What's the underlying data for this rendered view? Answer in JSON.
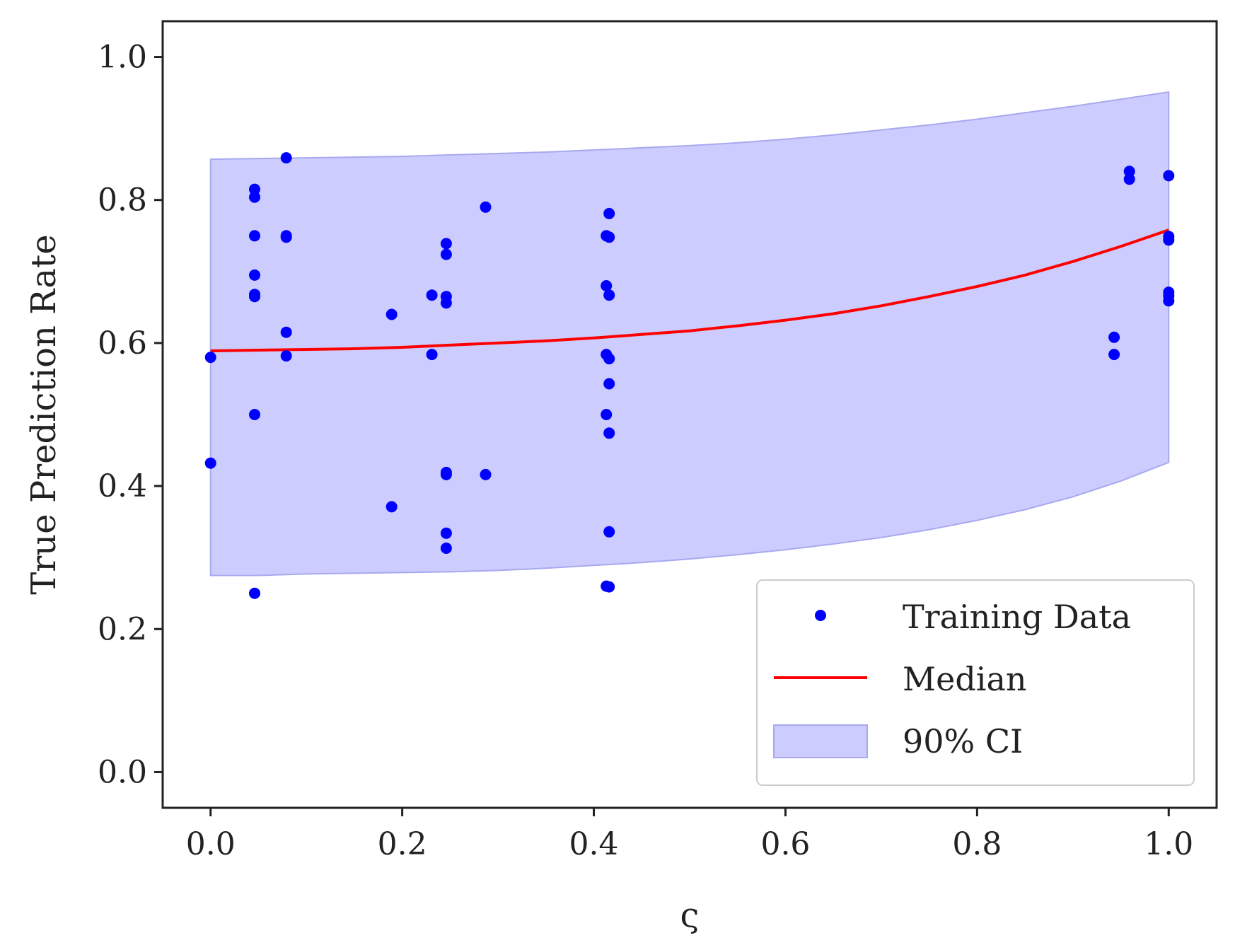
{
  "chart_data": {
    "type": "scatter",
    "title": "",
    "xlabel": "ς",
    "ylabel": "True Prediction Rate",
    "xlim": [
      -0.05,
      1.05
    ],
    "ylim": [
      -0.05,
      1.05
    ],
    "x_ticks": [
      0.0,
      0.2,
      0.4,
      0.6,
      0.8,
      1.0
    ],
    "x_tick_labels": [
      "0.0",
      "0.2",
      "0.4",
      "0.6",
      "0.8",
      "1.0"
    ],
    "y_ticks": [
      0.0,
      0.2,
      0.4,
      0.6,
      0.8,
      1.0
    ],
    "y_tick_labels": [
      "0.0",
      "0.2",
      "0.4",
      "0.6",
      "0.8",
      "1.0"
    ],
    "grid": false,
    "legend_position": "lower-right",
    "colors": {
      "points": "#0000ff",
      "median": "#ff0000",
      "band_fill": "#ccccff",
      "band_edge": "#a8a8f0",
      "axes": "#222222",
      "legend_border": "#cccccc"
    },
    "series": [
      {
        "name": "Training Data",
        "kind": "points",
        "points": [
          [
            0.0,
            0.58
          ],
          [
            0.0,
            0.432
          ],
          [
            0.046,
            0.815
          ],
          [
            0.046,
            0.804
          ],
          [
            0.046,
            0.75
          ],
          [
            0.046,
            0.695
          ],
          [
            0.046,
            0.668
          ],
          [
            0.046,
            0.665
          ],
          [
            0.046,
            0.5
          ],
          [
            0.046,
            0.25
          ],
          [
            0.079,
            0.859
          ],
          [
            0.079,
            0.75
          ],
          [
            0.079,
            0.748
          ],
          [
            0.079,
            0.615
          ],
          [
            0.079,
            0.582
          ],
          [
            0.189,
            0.64
          ],
          [
            0.189,
            0.371
          ],
          [
            0.231,
            0.667
          ],
          [
            0.231,
            0.584
          ],
          [
            0.246,
            0.739
          ],
          [
            0.246,
            0.724
          ],
          [
            0.246,
            0.665
          ],
          [
            0.246,
            0.656
          ],
          [
            0.246,
            0.419
          ],
          [
            0.246,
            0.416
          ],
          [
            0.246,
            0.334
          ],
          [
            0.246,
            0.313
          ],
          [
            0.287,
            0.79
          ],
          [
            0.287,
            0.416
          ],
          [
            0.413,
            0.75
          ],
          [
            0.413,
            0.68
          ],
          [
            0.413,
            0.584
          ],
          [
            0.413,
            0.5
          ],
          [
            0.413,
            0.26
          ],
          [
            0.416,
            0.781
          ],
          [
            0.416,
            0.748
          ],
          [
            0.416,
            0.667
          ],
          [
            0.416,
            0.578
          ],
          [
            0.416,
            0.543
          ],
          [
            0.416,
            0.474
          ],
          [
            0.416,
            0.336
          ],
          [
            0.416,
            0.259
          ],
          [
            0.943,
            0.608
          ],
          [
            0.943,
            0.584
          ],
          [
            0.959,
            0.84
          ],
          [
            0.959,
            0.829
          ],
          [
            1.0,
            0.834
          ],
          [
            1.0,
            0.749
          ],
          [
            1.0,
            0.744
          ],
          [
            1.0,
            0.671
          ],
          [
            1.0,
            0.666
          ],
          [
            1.0,
            0.659
          ]
        ]
      },
      {
        "name": "Median",
        "kind": "line",
        "x": [
          0.0,
          0.05,
          0.1,
          0.15,
          0.2,
          0.25,
          0.3,
          0.35,
          0.4,
          0.45,
          0.5,
          0.55,
          0.6,
          0.65,
          0.7,
          0.75,
          0.8,
          0.85,
          0.9,
          0.95,
          1.0
        ],
        "y": [
          0.589,
          0.59,
          0.591,
          0.592,
          0.594,
          0.597,
          0.6,
          0.603,
          0.607,
          0.612,
          0.617,
          0.624,
          0.632,
          0.641,
          0.652,
          0.665,
          0.679,
          0.695,
          0.714,
          0.735,
          0.758
        ]
      },
      {
        "name": "90% CI",
        "kind": "band",
        "x": [
          0.0,
          0.05,
          0.1,
          0.15,
          0.2,
          0.25,
          0.3,
          0.35,
          0.4,
          0.45,
          0.5,
          0.55,
          0.6,
          0.65,
          0.7,
          0.75,
          0.8,
          0.85,
          0.9,
          0.95,
          1.0
        ],
        "lower": [
          0.275,
          0.275,
          0.277,
          0.278,
          0.279,
          0.28,
          0.282,
          0.285,
          0.289,
          0.293,
          0.298,
          0.304,
          0.311,
          0.319,
          0.328,
          0.339,
          0.352,
          0.367,
          0.385,
          0.407,
          0.433
        ],
        "upper": [
          0.857,
          0.858,
          0.859,
          0.86,
          0.861,
          0.863,
          0.865,
          0.867,
          0.87,
          0.873,
          0.876,
          0.88,
          0.885,
          0.891,
          0.898,
          0.905,
          0.913,
          0.922,
          0.931,
          0.941,
          0.951
        ]
      }
    ]
  }
}
